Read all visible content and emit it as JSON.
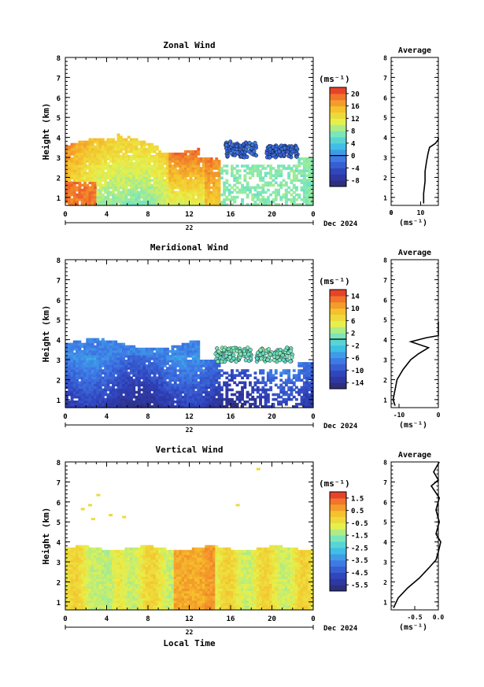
{
  "chart_data": [
    {
      "type": "heatmap",
      "title": "Zonal Wind",
      "ylabel": "Height (km)",
      "ylim": [
        0.6,
        8
      ],
      "yticks": [
        "1",
        "2",
        "3",
        "4",
        "5",
        "6",
        "7",
        "8"
      ],
      "xticks": [
        "0",
        "4",
        "8",
        "12",
        "16",
        "20",
        "0"
      ],
      "xlim": [
        0,
        24
      ],
      "date_label": "22",
      "month_label": "Dec 2024",
      "unit": "(ms⁻¹)",
      "colorbar_ticks": [
        "20",
        "16",
        "12",
        "8",
        "4",
        "0",
        "-4",
        "-8"
      ],
      "colorbar_range": [
        -10,
        22
      ],
      "colorbar_zero_line": 0,
      "profile": {
        "title": "Average",
        "xlim": [
          0,
          16
        ],
        "xticks": [
          "0",
          "10"
        ],
        "xlabel": "(ms⁻¹)",
        "ylim": [
          0.6,
          8
        ],
        "yticks": [
          "1",
          "2",
          "3",
          "4",
          "5",
          "6",
          "7",
          "8"
        ],
        "values": [
          [
            11,
            0.7
          ],
          [
            11,
            1.2
          ],
          [
            11.5,
            1.8
          ],
          [
            11.5,
            2.3
          ],
          [
            12,
            2.8
          ],
          [
            12.5,
            3.2
          ],
          [
            13,
            3.5
          ],
          [
            15,
            3.7
          ],
          [
            16,
            3.9
          ],
          [
            16,
            4.0
          ]
        ]
      }
    },
    {
      "type": "heatmap",
      "title": "Meridional Wind",
      "ylabel": "Height (km)",
      "ylim": [
        0.6,
        8
      ],
      "yticks": [
        "1",
        "2",
        "3",
        "4",
        "5",
        "6",
        "7",
        "8"
      ],
      "xticks": [
        "0",
        "4",
        "8",
        "12",
        "16",
        "20",
        "0"
      ],
      "xlim": [
        0,
        24
      ],
      "date_label": "22",
      "month_label": "Dec 2024",
      "unit": "(ms⁻¹)",
      "colorbar_ticks": [
        "14",
        "10",
        "6",
        "2",
        "-2",
        "-6",
        "-10",
        "-14"
      ],
      "colorbar_range": [
        -16,
        16
      ],
      "colorbar_zero_line": 0,
      "profile": {
        "title": "Average",
        "xlim": [
          -12,
          0
        ],
        "xticks": [
          "-10",
          "0"
        ],
        "xlabel": "(ms⁻¹)",
        "ylim": [
          0.6,
          8
        ],
        "yticks": [
          "1",
          "2",
          "3",
          "4",
          "5",
          "6",
          "7",
          "8"
        ],
        "values": [
          [
            -11,
            0.7
          ],
          [
            -11.5,
            1.0
          ],
          [
            -11,
            1.5
          ],
          [
            -10.5,
            2.0
          ],
          [
            -9,
            2.5
          ],
          [
            -7,
            3.0
          ],
          [
            -5,
            3.3
          ],
          [
            -2.5,
            3.6
          ],
          [
            -7,
            3.9
          ],
          [
            -3,
            4.1
          ],
          [
            0,
            4.2
          ],
          [
            0,
            4.9
          ]
        ]
      }
    },
    {
      "type": "heatmap",
      "title": "Vertical Wind",
      "ylabel": "Height (km)",
      "xlabel": "Local Time",
      "ylim": [
        0.6,
        8
      ],
      "yticks": [
        "1",
        "2",
        "3",
        "4",
        "5",
        "6",
        "7",
        "8"
      ],
      "xticks": [
        "0",
        "4",
        "8",
        "12",
        "16",
        "20",
        "0"
      ],
      "xlim": [
        0,
        24
      ],
      "date_label": "22",
      "month_label": "Dec 2024",
      "unit": "(ms⁻¹)",
      "colorbar_ticks": [
        "1.5",
        "0.5",
        "-0.5",
        "-1.5",
        "-2.5",
        "-3.5",
        "-4.5",
        "-5.5"
      ],
      "colorbar_range": [
        -6,
        2
      ],
      "colorbar_zero_line": null,
      "profile": {
        "title": "Average",
        "xlim": [
          -1,
          0
        ],
        "xticks": [
          "-0.5",
          "0.0"
        ],
        "xlabel": "(ms⁻¹)",
        "ylim": [
          0.6,
          8
        ],
        "yticks": [
          "1",
          "2",
          "3",
          "4",
          "5",
          "6",
          "7",
          "8"
        ],
        "values": [
          [
            -0.95,
            0.7
          ],
          [
            -0.85,
            1.2
          ],
          [
            -0.65,
            1.7
          ],
          [
            -0.4,
            2.2
          ],
          [
            -0.2,
            2.7
          ],
          [
            -0.05,
            3.1
          ],
          [
            0,
            3.5
          ],
          [
            0.05,
            4.0
          ],
          [
            -0.05,
            4.4
          ],
          [
            0.02,
            5.0
          ],
          [
            -0.05,
            5.6
          ],
          [
            0.02,
            6.2
          ],
          [
            -0.15,
            6.8
          ],
          [
            0,
            7.1
          ],
          [
            -0.1,
            7.5
          ],
          [
            0.02,
            8.0
          ]
        ]
      }
    }
  ]
}
